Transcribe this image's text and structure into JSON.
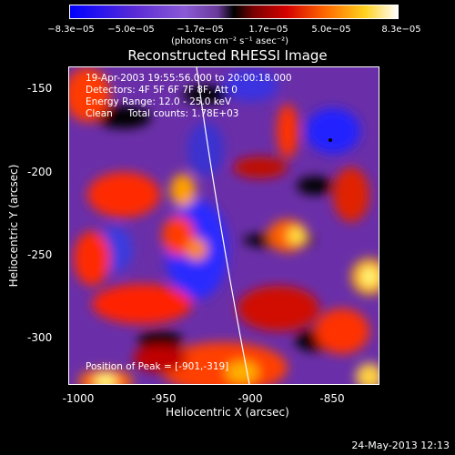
{
  "colorbar": {
    "ticks": [
      "−8.3e−05",
      "−5.0e−05",
      "−1.7e−05",
      "1.7e−05",
      "5.0e−05",
      "8.3e−05"
    ],
    "units": "(photons cm⁻² s⁻¹ asec⁻²)"
  },
  "title": "Reconstructed RHESSI Image",
  "annotations": {
    "time": "19-Apr-2003 19:55:56.000 to 20:00:18.000",
    "detectors": "Detectors: 4F 5F 6F 7F 8F, Att 0",
    "energy": "Energy Range: 12.0 - 25.0 keV",
    "clean": "Clean     Total counts: 1.78E+03",
    "peak": "Position of Peak = [-901,-319]"
  },
  "axes": {
    "xlabel": "Heliocentric X (arcsec)",
    "ylabel": "Heliocentric Y (arcsec)",
    "xticks": [
      "-1000",
      "-950",
      "-900",
      "-850"
    ],
    "yticks": [
      "-150",
      "-200",
      "-250",
      "-300"
    ]
  },
  "datestamp": "24-May-2013 12:13",
  "colors": {
    "background": "#000000",
    "text": "#ffffff"
  }
}
